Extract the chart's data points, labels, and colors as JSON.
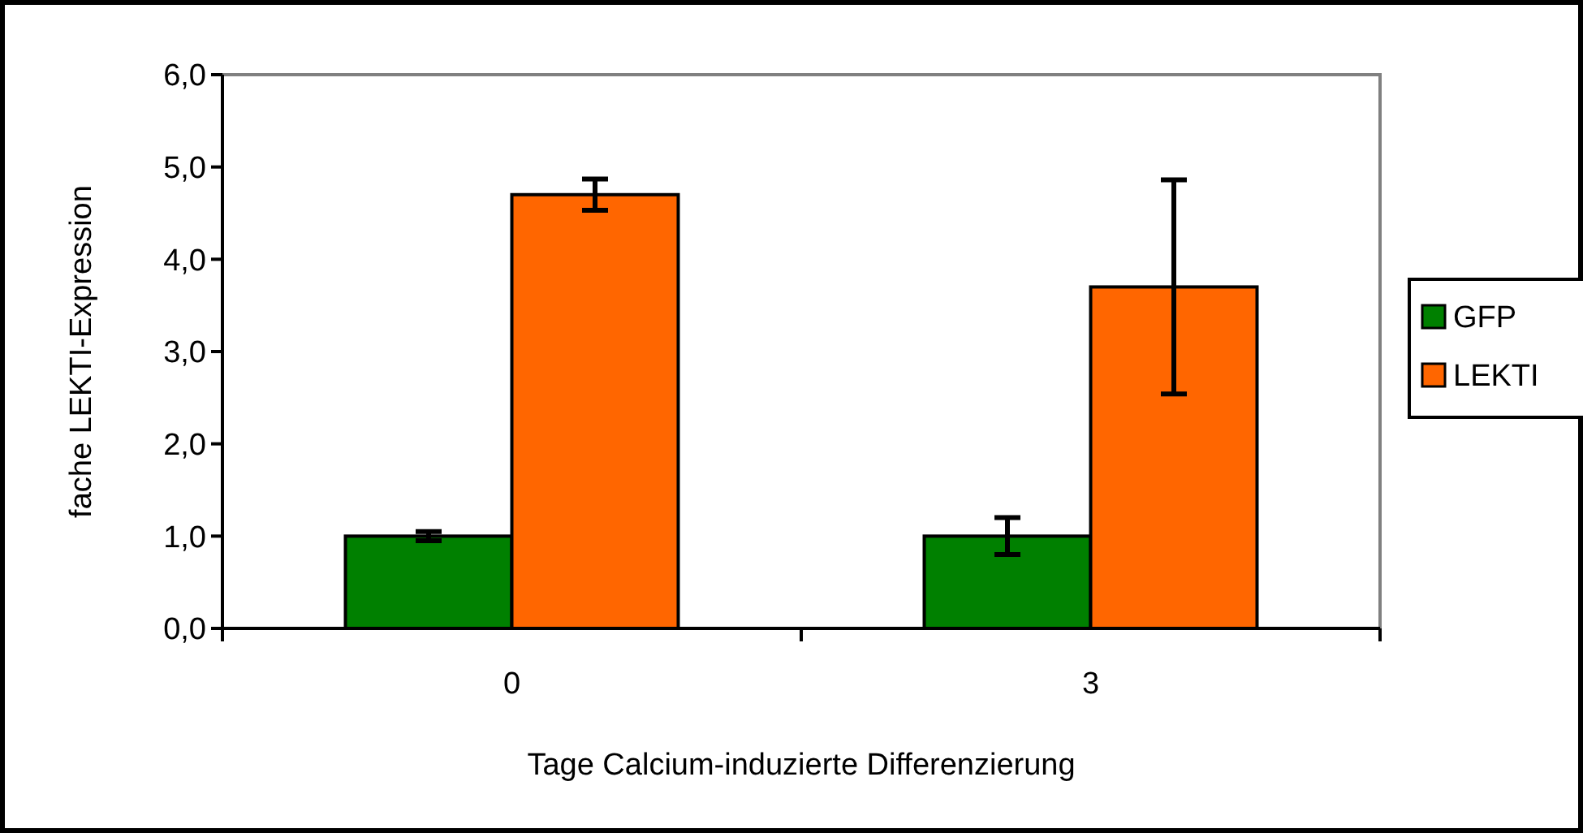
{
  "chart_data": {
    "type": "bar",
    "xlabel": "Tage Calcium-induzierte Differenzierung",
    "ylabel": "fache LEKTI-Expression",
    "categories": [
      "0",
      "3"
    ],
    "series": [
      {
        "name": "GFP",
        "color": "#008000",
        "values": [
          1.0,
          1.0
        ],
        "errors": [
          0.05,
          0.2
        ]
      },
      {
        "name": "LEKTI",
        "color": "#ff6600",
        "values": [
          4.7,
          3.7
        ],
        "errors": [
          0.17,
          1.16
        ]
      }
    ],
    "ylim": [
      0,
      6
    ],
    "yticks": [
      {
        "value": 0,
        "label": "0,0"
      },
      {
        "value": 1,
        "label": "1,0"
      },
      {
        "value": 2,
        "label": "2,0"
      },
      {
        "value": 3,
        "label": "3,0"
      },
      {
        "value": 4,
        "label": "4,0"
      },
      {
        "value": 5,
        "label": "5,0"
      },
      {
        "value": 6,
        "label": "6,0"
      }
    ],
    "grid": false,
    "legend": "right"
  }
}
